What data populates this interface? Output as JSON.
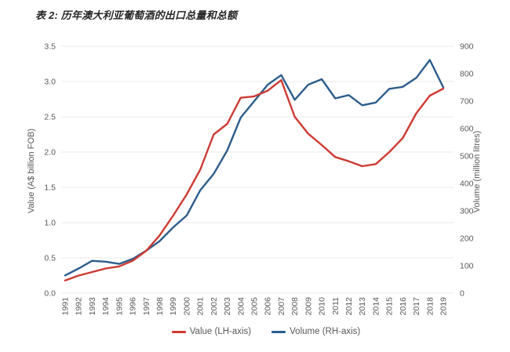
{
  "chart_data": {
    "type": "line",
    "title": "表 2: 历年澳大利亚葡萄酒的出口总量和总额",
    "categories": [
      "1991",
      "1992",
      "1993",
      "1994",
      "1995",
      "1996",
      "1997",
      "1998",
      "1999",
      "2000",
      "2001",
      "2002",
      "2003",
      "2004",
      "2005",
      "2006",
      "2007",
      "2008",
      "2009",
      "2010",
      "2011",
      "2012",
      "2013",
      "2014",
      "2015",
      "2016",
      "2017",
      "2018",
      "2019"
    ],
    "series": [
      {
        "name": "Value (LH-axis)",
        "axis": "left",
        "color": "#cc3b32",
        "values": [
          0.18,
          0.25,
          0.3,
          0.35,
          0.38,
          0.46,
          0.6,
          0.82,
          1.1,
          1.4,
          1.75,
          2.25,
          2.4,
          2.77,
          2.79,
          2.87,
          3.02,
          2.5,
          2.26,
          2.1,
          1.93,
          1.87,
          1.8,
          1.83,
          2.0,
          2.2,
          2.55,
          2.8,
          2.9
        ]
      },
      {
        "name": "Volume (RH-axis)",
        "axis": "right",
        "color": "#2c5d8c",
        "values": [
          65,
          90,
          118,
          115,
          107,
          125,
          155,
          190,
          240,
          283,
          375,
          435,
          520,
          640,
          700,
          760,
          795,
          705,
          760,
          780,
          710,
          722,
          685,
          695,
          745,
          752,
          785,
          850,
          750
        ]
      }
    ],
    "left_axis": {
      "label": "Value (A$ billion FOB)",
      "min": 0,
      "max": 3.5,
      "tick_step": 0.5,
      "tick_format_decimals": 1
    },
    "right_axis": {
      "label": "Volume (million litres)",
      "min": 0,
      "max": 900,
      "tick_step": 100,
      "tick_format_decimals": 0
    },
    "grid": "horizontal",
    "legend_position": "bottom",
    "colors": {
      "grid_line": "#e8e8e8",
      "tick_text": "#595959",
      "title_text": "#262626"
    }
  }
}
